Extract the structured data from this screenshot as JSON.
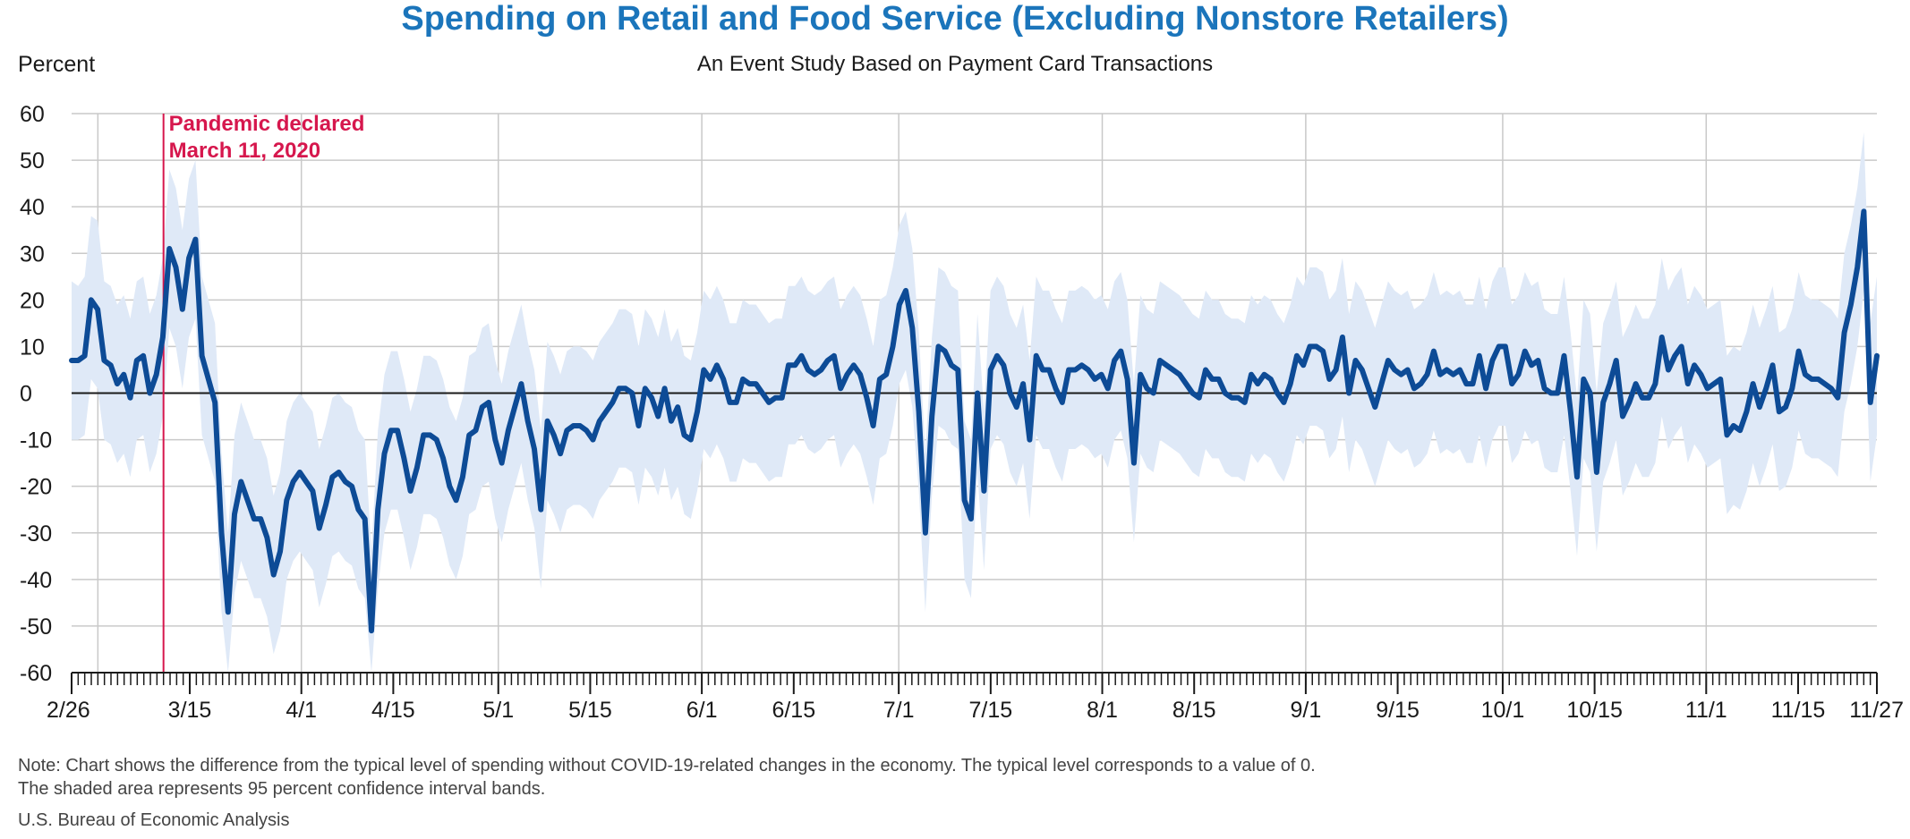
{
  "chart_data": {
    "type": "line",
    "title": "Spending on Retail and Food Service (Excluding Nonstore Retailers)",
    "subtitle": "An Event Study Based on Payment Card Transactions",
    "ylabel": "Percent",
    "ylim": [
      -60,
      60
    ],
    "yticks": [
      60,
      50,
      40,
      30,
      20,
      10,
      0,
      -10,
      -20,
      -30,
      -40,
      -50,
      -60
    ],
    "x_range": [
      "2020-02-26",
      "2020-11-27"
    ],
    "xtick_labels": [
      "2/26",
      "3/15",
      "4/1",
      "4/15",
      "5/1",
      "5/15",
      "6/1",
      "6/15",
      "7/1",
      "7/15",
      "8/1",
      "8/15",
      "9/1",
      "9/15",
      "10/1",
      "10/15",
      "11/1",
      "11/15",
      "11/27"
    ],
    "series": [
      {
        "color": "#0d4b96",
        "values": [
          7,
          7,
          8,
          20,
          18,
          7,
          6,
          2,
          4,
          -1,
          7,
          8,
          0,
          4,
          12,
          31,
          27,
          18,
          29,
          33,
          8,
          3,
          -2,
          -30,
          -47,
          -26,
          -19,
          -23,
          -27,
          -27,
          -31,
          -39,
          -34,
          -23,
          -19,
          -17,
          -19,
          -21,
          -29,
          -24,
          -18,
          -17,
          -19,
          -20,
          -25,
          -27,
          -51,
          -25,
          -13,
          -8,
          -8,
          -14,
          -21,
          -16,
          -9,
          -9,
          -10,
          -14,
          -20,
          -23,
          -18,
          -9,
          -8,
          -3,
          -2,
          -10,
          -15,
          -8,
          -3,
          2,
          -6,
          -12,
          -25,
          -6,
          -9,
          -13,
          -8,
          -7,
          -7,
          -8,
          -10,
          -6,
          -4,
          -2,
          1,
          1,
          0,
          -7,
          1,
          -1,
          -5,
          1,
          -6,
          -3,
          -9,
          -10,
          -4,
          5,
          3,
          6,
          3,
          -2,
          -2,
          3,
          2,
          2,
          0,
          -2,
          -1,
          -1,
          6,
          6,
          8,
          5,
          4,
          5,
          7,
          8,
          1,
          4,
          6,
          4,
          -1,
          -7,
          3,
          4,
          10,
          19,
          22,
          14,
          -4,
          -30,
          -5,
          10,
          9,
          6,
          5,
          -23,
          -27,
          0,
          -21,
          5,
          8,
          6,
          0,
          -3,
          2,
          -10,
          8,
          5,
          5,
          1,
          -2,
          5,
          5,
          6,
          5,
          3,
          4,
          1,
          7,
          9,
          3,
          -15,
          4,
          1,
          0,
          7,
          6,
          5,
          4,
          2,
          0,
          -1,
          5,
          3,
          3,
          0,
          -1,
          -1,
          -2,
          4,
          2,
          4,
          3,
          0,
          -2,
          2,
          8,
          6,
          10,
          10,
          9,
          3,
          5,
          12,
          0,
          7,
          5,
          1,
          -3,
          2,
          7,
          5,
          4,
          5,
          1,
          2,
          4,
          9,
          4,
          5,
          4,
          5,
          2,
          2,
          8,
          1,
          7,
          10,
          10,
          2,
          4,
          9,
          6,
          7,
          1,
          0,
          0,
          8,
          -4,
          -18,
          3,
          0,
          -17,
          -2,
          2,
          7,
          -5,
          -2,
          2,
          -1,
          -1,
          2,
          12,
          5,
          8,
          10,
          2,
          6,
          4,
          1,
          2,
          3,
          -9,
          -7,
          -8,
          -4,
          2,
          -3,
          1,
          6,
          -4,
          -3,
          1,
          9,
          4,
          3,
          3,
          2,
          1,
          -1,
          13,
          19,
          27,
          39,
          -2,
          8
        ],
        "ci_upper": [
          24,
          23,
          25,
          38,
          37,
          24,
          23,
          19,
          21,
          16,
          24,
          25,
          17,
          21,
          29,
          48,
          44,
          35,
          46,
          50,
          25,
          20,
          15,
          -13,
          -30,
          -9,
          -2,
          -6,
          -10,
          -10,
          -14,
          -22,
          -17,
          -6,
          -2,
          0,
          -2,
          -4,
          -12,
          -7,
          -1,
          0,
          -2,
          -3,
          -8,
          -10,
          -34,
          -8,
          4,
          9,
          9,
          3,
          -4,
          1,
          8,
          8,
          7,
          3,
          -3,
          -6,
          -1,
          8,
          9,
          14,
          15,
          7,
          2,
          9,
          14,
          19,
          11,
          5,
          -8,
          11,
          8,
          4,
          9,
          10,
          10,
          9,
          7,
          11,
          13,
          15,
          18,
          18,
          17,
          10,
          18,
          16,
          12,
          18,
          11,
          14,
          8,
          7,
          13,
          22,
          20,
          23,
          20,
          15,
          15,
          20,
          19,
          19,
          17,
          15,
          16,
          16,
          23,
          23,
          25,
          22,
          21,
          22,
          24,
          25,
          18,
          21,
          23,
          21,
          16,
          10,
          20,
          21,
          27,
          36,
          39,
          31,
          13,
          -13,
          12,
          27,
          26,
          23,
          22,
          -6,
          -10,
          17,
          -4,
          22,
          25,
          23,
          17,
          14,
          19,
          7,
          25,
          22,
          22,
          18,
          15,
          22,
          22,
          23,
          22,
          20,
          21,
          18,
          24,
          26,
          20,
          2,
          21,
          18,
          17,
          24,
          23,
          22,
          21,
          19,
          17,
          16,
          22,
          20,
          20,
          17,
          16,
          16,
          15,
          21,
          19,
          21,
          20,
          17,
          15,
          19,
          25,
          23,
          27,
          27,
          26,
          20,
          22,
          29,
          17,
          24,
          22,
          18,
          14,
          19,
          24,
          22,
          21,
          22,
          18,
          19,
          21,
          26,
          21,
          22,
          21,
          22,
          19,
          19,
          25,
          18,
          24,
          27,
          27,
          19,
          21,
          26,
          23,
          24,
          18,
          17,
          17,
          25,
          13,
          -1,
          20,
          17,
          0,
          15,
          19,
          24,
          12,
          15,
          19,
          16,
          16,
          19,
          29,
          22,
          25,
          27,
          19,
          23,
          21,
          18,
          19,
          20,
          8,
          10,
          9,
          13,
          19,
          14,
          18,
          23,
          13,
          14,
          18,
          26,
          21,
          20,
          20,
          19,
          18,
          16,
          30,
          36,
          44,
          56,
          15,
          25
        ],
        "ci_lower": [
          -10,
          -10,
          -9,
          3,
          1,
          -10,
          -11,
          -15,
          -13,
          -18,
          -10,
          -9,
          -17,
          -13,
          -5,
          14,
          10,
          1,
          12,
          16,
          -9,
          -14,
          -19,
          -47,
          -64,
          -43,
          -36,
          -40,
          -44,
          -44,
          -48,
          -56,
          -51,
          -40,
          -36,
          -34,
          -36,
          -38,
          -46,
          -41,
          -35,
          -34,
          -36,
          -37,
          -42,
          -44,
          -68,
          -42,
          -30,
          -25,
          -25,
          -31,
          -38,
          -33,
          -26,
          -26,
          -27,
          -31,
          -37,
          -40,
          -35,
          -26,
          -25,
          -20,
          -19,
          -27,
          -32,
          -25,
          -20,
          -15,
          -23,
          -29,
          -42,
          -23,
          -26,
          -30,
          -25,
          -24,
          -24,
          -25,
          -27,
          -23,
          -21,
          -19,
          -16,
          -16,
          -17,
          -24,
          -16,
          -18,
          -22,
          -16,
          -23,
          -20,
          -26,
          -27,
          -21,
          -12,
          -14,
          -11,
          -14,
          -19,
          -19,
          -14,
          -15,
          -15,
          -17,
          -19,
          -18,
          -18,
          -11,
          -11,
          -9,
          -12,
          -13,
          -12,
          -10,
          -9,
          -16,
          -13,
          -11,
          -13,
          -18,
          -24,
          -14,
          -13,
          -7,
          2,
          5,
          -3,
          -21,
          -47,
          -22,
          -7,
          -8,
          -11,
          -12,
          -40,
          -44,
          -17,
          -38,
          -12,
          -9,
          -11,
          -17,
          -20,
          -15,
          -27,
          -9,
          -12,
          -12,
          -16,
          -19,
          -12,
          -12,
          -11,
          -12,
          -14,
          -13,
          -16,
          -10,
          -8,
          -14,
          -32,
          -13,
          -16,
          -17,
          -10,
          -11,
          -12,
          -13,
          -15,
          -17,
          -18,
          -12,
          -14,
          -14,
          -17,
          -18,
          -18,
          -19,
          -13,
          -15,
          -13,
          -14,
          -17,
          -19,
          -15,
          -9,
          -11,
          -7,
          -7,
          -8,
          -14,
          -12,
          -5,
          -17,
          -10,
          -12,
          -16,
          -20,
          -15,
          -10,
          -12,
          -13,
          -12,
          -16,
          -15,
          -13,
          -8,
          -13,
          -12,
          -13,
          -12,
          -15,
          -15,
          -9,
          -16,
          -10,
          -7,
          -7,
          -15,
          -13,
          -8,
          -11,
          -10,
          -16,
          -17,
          -17,
          -9,
          -21,
          -35,
          -14,
          -17,
          -34,
          -19,
          -15,
          -10,
          -22,
          -19,
          -15,
          -18,
          -18,
          -15,
          -5,
          -12,
          -9,
          -7,
          -15,
          -11,
          -13,
          -16,
          -15,
          -14,
          -26,
          -24,
          -25,
          -21,
          -15,
          -20,
          -16,
          -11,
          -21,
          -20,
          -16,
          -8,
          -13,
          -14,
          -14,
          -15,
          -16,
          -18,
          -4,
          2,
          10,
          22,
          -19,
          -9
        ]
      }
    ],
    "zero_line": 0,
    "grid": true,
    "annotation": {
      "line1": "Pandemic declared",
      "line2": "March 11, 2020",
      "date": "2020-03-11",
      "color": "#d6174d"
    },
    "ci_color": "#dfe9f7"
  },
  "note": {
    "line1": "Note: Chart shows the difference from the typical level of spending without COVID-19-related changes in the economy. The typical level corresponds to a value of 0.",
    "line2": "The shaded area represents 95 percent confidence interval bands."
  },
  "source": "U.S. Bureau of Economic Analysis"
}
